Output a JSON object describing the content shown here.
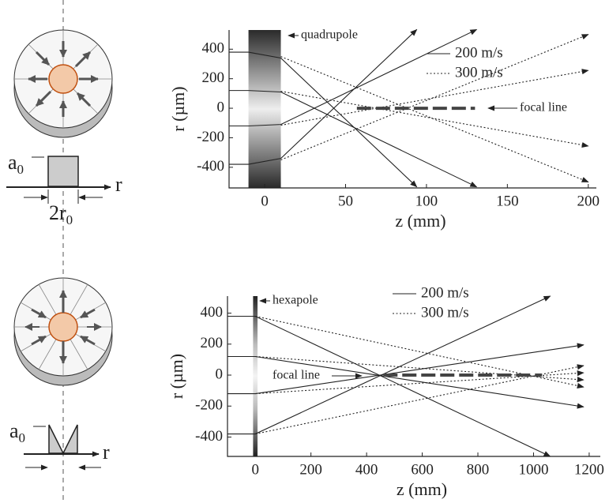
{
  "chart_data": [
    {
      "type": "line",
      "element_label": "quadrupole",
      "annotation": "focal line",
      "x_label": "z (mm)",
      "y_label": "r (µm)",
      "xlim": [
        -22,
        205
      ],
      "ylim": [
        -540,
        530
      ],
      "xticks": [
        0,
        50,
        100,
        150,
        200
      ],
      "yticks": [
        -400,
        -200,
        0,
        200,
        400
      ],
      "element_span": [
        -10,
        10
      ],
      "focal_line": [
        57,
        130
      ],
      "series": [
        {
          "name": "200 m/s",
          "style": "solid",
          "color": "#222",
          "rays": [
            {
              "x": [
                -22,
                -10,
                10,
                94
              ],
              "values": [
                380,
                380,
                340,
                -533
              ]
            },
            {
              "x": [
                -22,
                -10,
                10,
                131
              ],
              "values": [
                120,
                120,
                110,
                -533
              ]
            },
            {
              "x": [
                -22,
                -10,
                10,
                131
              ],
              "values": [
                -120,
                -120,
                -110,
                533
              ]
            },
            {
              "x": [
                -22,
                -10,
                10,
                94
              ],
              "values": [
                -380,
                -380,
                -340,
                533
              ]
            }
          ]
        },
        {
          "name": "300 m/s",
          "style": "dotted",
          "color": "#222",
          "rays": [
            {
              "x": [
                10,
                200
              ],
              "values": [
                350,
                -500
              ]
            },
            {
              "x": [
                10,
                200
              ],
              "values": [
                115,
                -256
              ]
            },
            {
              "x": [
                10,
                200
              ],
              "values": [
                -115,
                256
              ]
            },
            {
              "x": [
                10,
                200
              ],
              "values": [
                -350,
                500
              ]
            }
          ]
        }
      ]
    },
    {
      "type": "line",
      "element_label": "hexapole",
      "annotation": "focal line",
      "x_label": "z (mm)",
      "y_label": "r (µm)",
      "xlim": [
        -100,
        1240
      ],
      "ylim": [
        -525,
        510
      ],
      "xticks": [
        0,
        200,
        400,
        600,
        800,
        1000,
        1200
      ],
      "yticks": [
        -400,
        -200,
        0,
        200,
        400
      ],
      "element_span": [
        -8,
        8
      ],
      "focal_line": [
        460,
        1030
      ],
      "series": [
        {
          "name": "200 m/s",
          "style": "solid",
          "color": "#222",
          "rays": [
            {
              "x": [
                -100,
                0,
                1060
              ],
              "values": [
                380,
                380,
                -525
              ]
            },
            {
              "x": [
                -100,
                0,
                1180
              ],
              "values": [
                120,
                120,
                -205
              ]
            },
            {
              "x": [
                -100,
                0,
                1180
              ],
              "values": [
                -120,
                -120,
                195
              ]
            },
            {
              "x": [
                -100,
                0,
                1060
              ],
              "values": [
                -380,
                -380,
                510
              ]
            }
          ]
        },
        {
          "name": "300 m/s",
          "style": "dotted",
          "color": "#222",
          "rays": [
            {
              "x": [
                0,
                1180
              ],
              "values": [
                380,
                -77
              ]
            },
            {
              "x": [
                0,
                1180
              ],
              "values": [
                120,
                -31
              ]
            },
            {
              "x": [
                0,
                1180
              ],
              "values": [
                -120,
                15
              ]
            },
            {
              "x": [
                0,
                1180
              ],
              "values": [
                -380,
                61
              ]
            }
          ]
        }
      ]
    }
  ],
  "left_panel": {
    "top": {
      "amplitude": "a",
      "amplitude_sub": "0",
      "axis": "r",
      "width": "2r",
      "width_sub": "0"
    },
    "bottom": {
      "amplitude": "a",
      "amplitude_sub": "0",
      "axis": "r"
    }
  }
}
